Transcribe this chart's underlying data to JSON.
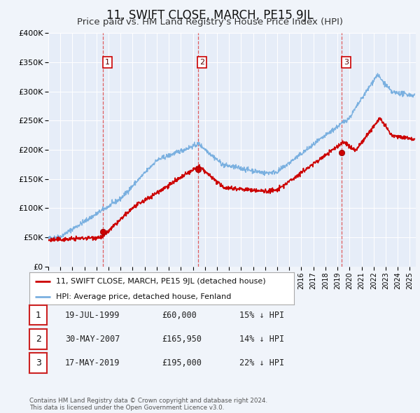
{
  "title": "11, SWIFT CLOSE, MARCH, PE15 9JL",
  "subtitle": "Price paid vs. HM Land Registry's House Price Index (HPI)",
  "title_fontsize": 12,
  "subtitle_fontsize": 9.5,
  "background_color": "#f0f4fa",
  "plot_bg_color": "#e6edf8",
  "grid_color": "#ffffff",
  "ylim": [
    0,
    400000
  ],
  "yticks": [
    0,
    50000,
    100000,
    150000,
    200000,
    250000,
    300000,
    350000,
    400000
  ],
  "xlim_start": 1995.0,
  "xlim_end": 2025.5,
  "xticks": [
    1995,
    1996,
    1997,
    1998,
    1999,
    2000,
    2001,
    2002,
    2003,
    2004,
    2005,
    2006,
    2007,
    2008,
    2009,
    2010,
    2011,
    2012,
    2013,
    2014,
    2015,
    2016,
    2017,
    2018,
    2019,
    2020,
    2021,
    2022,
    2023,
    2024,
    2025
  ],
  "sale_dates": [
    1999.54,
    2007.41,
    2019.37
  ],
  "sale_prices": [
    60000,
    165950,
    195000
  ],
  "sale_labels": [
    "1",
    "2",
    "3"
  ],
  "sale_dot_color": "#cc0000",
  "vline_color": "#dd4444",
  "hpi_line_color": "#7ab0e0",
  "price_line_color": "#cc0000",
  "legend_label_red": "11, SWIFT CLOSE, MARCH, PE15 9JL (detached house)",
  "legend_label_blue": "HPI: Average price, detached house, Fenland",
  "table_entries": [
    {
      "num": "1",
      "date": "19-JUL-1999",
      "price": "£60,000",
      "pct": "15% ↓ HPI"
    },
    {
      "num": "2",
      "date": "30-MAY-2007",
      "price": "£165,950",
      "pct": "14% ↓ HPI"
    },
    {
      "num": "3",
      "date": "17-MAY-2019",
      "price": "£195,000",
      "pct": "22% ↓ HPI"
    }
  ],
  "footer": "Contains HM Land Registry data © Crown copyright and database right 2024.\nThis data is licensed under the Open Government Licence v3.0."
}
